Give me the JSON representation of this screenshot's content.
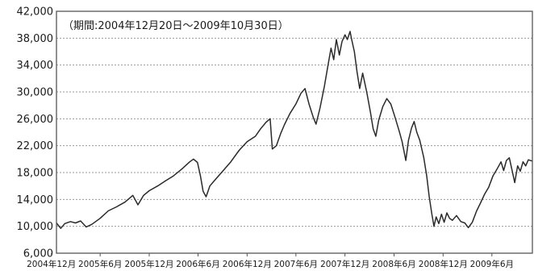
{
  "chart_data": {
    "type": "line",
    "title": "",
    "xlabel": "",
    "ylabel": "",
    "annotation": "（期間:2004年12月20日～2009年10月30日）",
    "ylim": [
      6000,
      42000
    ],
    "yticks": [
      6000,
      10000,
      14000,
      18000,
      22000,
      26000,
      30000,
      34000,
      38000,
      42000
    ],
    "ytick_labels": [
      "6,000",
      "10,000",
      "14,000",
      "18,000",
      "22,000",
      "26,000",
      "30,000",
      "34,000",
      "38,000",
      "42,000"
    ],
    "xlim": [
      "2004-12-20",
      "2009-10-30"
    ],
    "xticks": [
      "2004-12",
      "2005-06",
      "2005-12",
      "2006-06",
      "2006-12",
      "2007-06",
      "2007-12",
      "2008-06",
      "2008-12",
      "2009-06"
    ],
    "xtick_labels": [
      "2004年12月",
      "2005年6月",
      "2005年12月",
      "2006年6月",
      "2006年12月",
      "2007年6月",
      "2007年12月",
      "2008年6月",
      "2008年12月",
      "2009年6月"
    ],
    "grid": true,
    "series": [
      {
        "points": [
          [
            "2004-12-20",
            10500
          ],
          [
            "2005-01-05",
            9700
          ],
          [
            "2005-01-20",
            10400
          ],
          [
            "2005-02-10",
            10700
          ],
          [
            "2005-03-01",
            10500
          ],
          [
            "2005-03-20",
            10800
          ],
          [
            "2005-04-10",
            9900
          ],
          [
            "2005-05-01",
            10300
          ],
          [
            "2005-06-01",
            11200
          ],
          [
            "2005-07-01",
            12300
          ],
          [
            "2005-08-01",
            12900
          ],
          [
            "2005-09-01",
            13600
          ],
          [
            "2005-10-01",
            14600
          ],
          [
            "2005-10-20",
            13200
          ],
          [
            "2005-11-10",
            14600
          ],
          [
            "2005-12-01",
            15300
          ],
          [
            "2006-01-01",
            16000
          ],
          [
            "2006-02-01",
            16800
          ],
          [
            "2006-03-01",
            17500
          ],
          [
            "2006-04-01",
            18500
          ],
          [
            "2006-05-01",
            19600
          ],
          [
            "2006-05-15",
            20000
          ],
          [
            "2006-05-30",
            19500
          ],
          [
            "2006-06-10",
            17500
          ],
          [
            "2006-06-20",
            15200
          ],
          [
            "2006-07-01",
            14400
          ],
          [
            "2006-07-15",
            16000
          ],
          [
            "2006-08-01",
            16800
          ],
          [
            "2006-09-01",
            18200
          ],
          [
            "2006-10-01",
            19600
          ],
          [
            "2006-11-01",
            21300
          ],
          [
            "2006-12-01",
            22600
          ],
          [
            "2007-01-01",
            23400
          ],
          [
            "2007-01-20",
            24500
          ],
          [
            "2007-02-10",
            25500
          ],
          [
            "2007-02-25",
            26000
          ],
          [
            "2007-03-05",
            21500
          ],
          [
            "2007-03-20",
            22000
          ],
          [
            "2007-04-05",
            23800
          ],
          [
            "2007-04-20",
            25200
          ],
          [
            "2007-05-10",
            26800
          ],
          [
            "2007-06-01",
            28200
          ],
          [
            "2007-06-20",
            29800
          ],
          [
            "2007-07-05",
            30500
          ],
          [
            "2007-07-20",
            28200
          ],
          [
            "2007-08-05",
            26200
          ],
          [
            "2007-08-15",
            25200
          ],
          [
            "2007-08-30",
            27600
          ],
          [
            "2007-09-15",
            30800
          ],
          [
            "2007-10-01",
            34500
          ],
          [
            "2007-10-10",
            36500
          ],
          [
            "2007-10-20",
            34800
          ],
          [
            "2007-10-30",
            37800
          ],
          [
            "2007-11-10",
            35500
          ],
          [
            "2007-11-20",
            37500
          ],
          [
            "2007-12-01",
            38500
          ],
          [
            "2007-12-10",
            37800
          ],
          [
            "2007-12-20",
            39000
          ],
          [
            "2007-12-25",
            38000
          ],
          [
            "2008-01-05",
            36000
          ],
          [
            "2008-01-15",
            33000
          ],
          [
            "2008-01-25",
            30500
          ],
          [
            "2008-02-05",
            32800
          ],
          [
            "2008-02-20",
            30000
          ],
          [
            "2008-03-05",
            27000
          ],
          [
            "2008-03-15",
            24500
          ],
          [
            "2008-03-25",
            23400
          ],
          [
            "2008-04-05",
            25800
          ],
          [
            "2008-04-20",
            27800
          ],
          [
            "2008-05-05",
            29000
          ],
          [
            "2008-05-20",
            28200
          ],
          [
            "2008-06-05",
            26200
          ],
          [
            "2008-06-20",
            24200
          ],
          [
            "2008-07-01",
            22600
          ],
          [
            "2008-07-15",
            19800
          ],
          [
            "2008-07-25",
            22800
          ],
          [
            "2008-08-05",
            24600
          ],
          [
            "2008-08-15",
            25600
          ],
          [
            "2008-08-25",
            24000
          ],
          [
            "2008-09-05",
            22800
          ],
          [
            "2008-09-20",
            20200
          ],
          [
            "2008-10-01",
            17500
          ],
          [
            "2008-10-10",
            14500
          ],
          [
            "2008-10-20",
            11800
          ],
          [
            "2008-10-28",
            10000
          ],
          [
            "2008-11-05",
            11400
          ],
          [
            "2008-11-15",
            10400
          ],
          [
            "2008-11-25",
            11800
          ],
          [
            "2008-12-05",
            10600
          ],
          [
            "2008-12-15",
            12000
          ],
          [
            "2008-12-25",
            11200
          ],
          [
            "2009-01-05",
            10900
          ],
          [
            "2009-01-20",
            11600
          ],
          [
            "2009-02-05",
            10700
          ],
          [
            "2009-02-20",
            10500
          ],
          [
            "2009-03-05",
            9800
          ],
          [
            "2009-03-20",
            10600
          ],
          [
            "2009-04-05",
            12300
          ],
          [
            "2009-04-20",
            13500
          ],
          [
            "2009-05-05",
            14800
          ],
          [
            "2009-05-20",
            15800
          ],
          [
            "2009-06-05",
            17500
          ],
          [
            "2009-06-20",
            18500
          ],
          [
            "2009-07-05",
            19600
          ],
          [
            "2009-07-15",
            18300
          ],
          [
            "2009-07-25",
            19800
          ],
          [
            "2009-08-05",
            20200
          ],
          [
            "2009-08-15",
            18400
          ],
          [
            "2009-08-25",
            16500
          ],
          [
            "2009-09-05",
            19000
          ],
          [
            "2009-09-15",
            18200
          ],
          [
            "2009-09-25",
            19600
          ],
          [
            "2009-10-05",
            19000
          ],
          [
            "2009-10-15",
            19900
          ],
          [
            "2009-10-30",
            19700
          ]
        ]
      }
    ]
  }
}
